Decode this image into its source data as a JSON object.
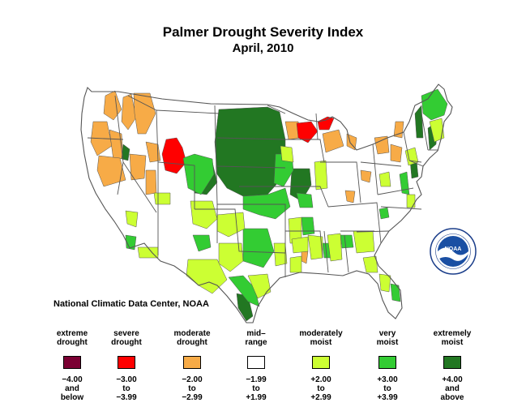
{
  "title": "Palmer Drought Severity Index",
  "subtitle": "April, 2010",
  "source": "National Climatic Data Center, NOAA",
  "logo_text": "NOAA",
  "colors": {
    "extreme": "#7b0033",
    "severe": "#ff0000",
    "moderate": "#f7ab47",
    "mid": "#ffffff",
    "moderately_moist": "#ccff33",
    "very_moist": "#33cc33",
    "extremely_moist": "#227722",
    "border": "#555555"
  },
  "legend": [
    {
      "label1": "extreme",
      "label2": "drought",
      "color": "#7b0033",
      "r1": "−4.00",
      "r2": "and",
      "r3": "below"
    },
    {
      "label1": "severe",
      "label2": "drought",
      "color": "#ff0000",
      "r1": "−3.00",
      "r2": "to",
      "r3": "−3.99"
    },
    {
      "label1": "moderate",
      "label2": "drought",
      "color": "#f7ab47",
      "r1": "−2.00",
      "r2": "to",
      "r3": "−2.99"
    },
    {
      "label1": "mid–",
      "label2": "range",
      "color": "#ffffff",
      "r1": "−1.99",
      "r2": "to",
      "r3": "+1.99"
    },
    {
      "label1": "moderately",
      "label2": "moist",
      "color": "#ccff33",
      "r1": "+2.00",
      "r2": "to",
      "r3": "+2.99"
    },
    {
      "label1": "very",
      "label2": "moist",
      "color": "#33cc33",
      "r1": "+3.00",
      "r2": "to",
      "r3": "+3.99"
    },
    {
      "label1": "extremely",
      "label2": "moist",
      "color": "#227722",
      "r1": "+4.00",
      "r2": "and",
      "r3": "above"
    }
  ]
}
